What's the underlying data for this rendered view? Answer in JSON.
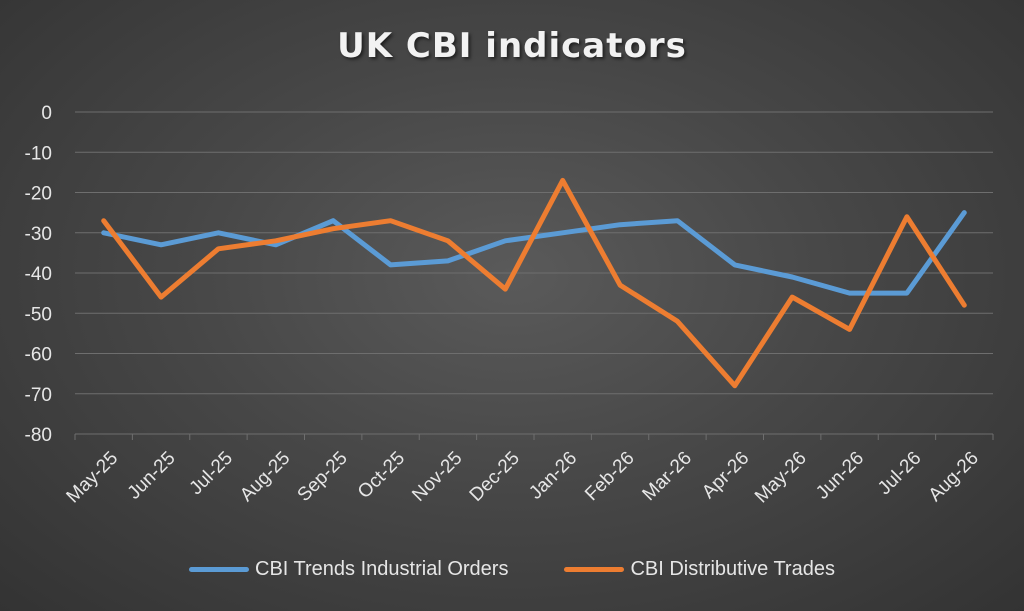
{
  "chart_data": {
    "type": "line",
    "title": "UK CBI indicators",
    "xlabel": "",
    "ylabel": "",
    "categories": [
      "May-25",
      "Jun-25",
      "Jul-25",
      "Aug-25",
      "Sep-25",
      "Oct-25",
      "Nov-25",
      "Dec-25",
      "Jan-26",
      "Feb-26",
      "Mar-26",
      "Apr-26",
      "May-26",
      "Jun-26",
      "Jul-26",
      "Aug-26"
    ],
    "ylim": [
      -80,
      0
    ],
    "yticks": [
      "0",
      "-10",
      "-20",
      "-30",
      "-40",
      "-50",
      "-60",
      "-70",
      "-80"
    ],
    "grid": true,
    "legend_position": "bottom",
    "series": [
      {
        "name": "CBI Trends Industrial Orders",
        "color": "#5b9bd5",
        "values": [
          -30,
          -33,
          -30,
          -33,
          -27,
          -38,
          -37,
          -32,
          -30,
          -28,
          -27,
          -38,
          -41,
          -45,
          -45,
          -25
        ]
      },
      {
        "name": "CBI Distributive Trades",
        "color": "#ed7d31",
        "values": [
          -27,
          -46,
          -34,
          -32,
          -29,
          -27,
          -32,
          -44,
          -17,
          -43,
          -52,
          -68,
          -46,
          -54,
          -26,
          -48
        ]
      }
    ]
  }
}
